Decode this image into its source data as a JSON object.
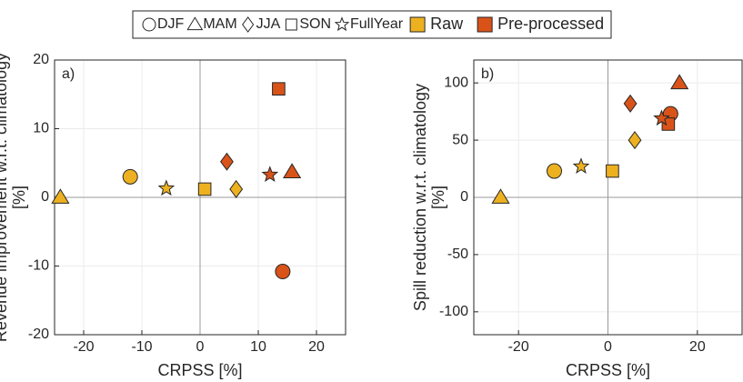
{
  "legend": {
    "seasons": [
      "DJF",
      "MAM",
      "JJA",
      "SON",
      "FullYear"
    ],
    "markers": [
      "circle",
      "triangle",
      "diamond",
      "square",
      "star"
    ]
  },
  "chart_data": [
    {
      "type": "scatter",
      "annotation": "a)",
      "x_label": "CRPSS [%]",
      "y_label": [
        "Revenue improvement w.r.t. climatology",
        "[%]"
      ],
      "xlim": [
        -25,
        25
      ],
      "xticks": [
        -20,
        -10,
        0,
        10,
        20
      ],
      "ylim": [
        -20,
        20
      ],
      "yticks": [
        -20,
        -10,
        0,
        10,
        20
      ],
      "grid": true,
      "series": [
        {
          "name": "Raw",
          "color": "#EDB120",
          "x": [
            -12,
            -24,
            6.2,
            0.8,
            -5.8
          ],
          "values": [
            3,
            0,
            1.2,
            1.2,
            1.3
          ]
        },
        {
          "name": "Pre-processed",
          "color": "#D95319",
          "x": [
            14.2,
            15.8,
            4.6,
            13.5,
            12
          ],
          "values": [
            -10.8,
            3.7,
            5.2,
            15.8,
            3.3
          ]
        }
      ]
    },
    {
      "type": "scatter",
      "annotation": "b)",
      "x_label": "CRPSS [%]",
      "y_label": [
        "Spill reduction w.r.t. climatology",
        "[%]"
      ],
      "xlim": [
        -30,
        30
      ],
      "xticks": [
        -20,
        0,
        20
      ],
      "ylim": [
        -120,
        120
      ],
      "yticks": [
        -100,
        -50,
        0,
        50,
        100
      ],
      "grid": true,
      "series": [
        {
          "name": "Raw",
          "color": "#EDB120",
          "x": [
            -12,
            -24,
            6,
            1,
            -6
          ],
          "values": [
            23,
            0,
            50,
            23,
            27
          ]
        },
        {
          "name": "Pre-processed",
          "color": "#D95319",
          "x": [
            14,
            16,
            5,
            13.5,
            12
          ],
          "values": [
            73,
            100,
            82,
            64,
            69
          ]
        }
      ]
    }
  ]
}
